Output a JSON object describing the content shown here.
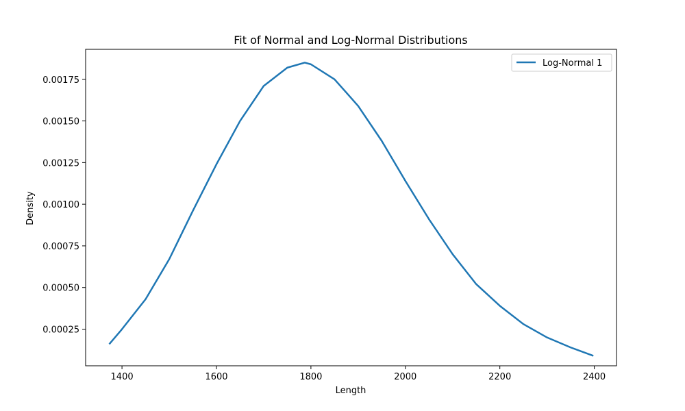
{
  "chart_data": {
    "type": "line",
    "title": "Fit of Normal and Log-Normal Distributions",
    "xlabel": "Length",
    "ylabel": "Density",
    "xlim": [
      1323,
      2447
    ],
    "ylim": [
      3e-05,
      0.00193
    ],
    "x_ticks": [
      1400,
      1600,
      1800,
      2000,
      2200,
      2400
    ],
    "x_tick_labels": [
      "1400",
      "1600",
      "1800",
      "2000",
      "2200",
      "2400"
    ],
    "y_ticks": [
      0.00025,
      0.0005,
      0.00075,
      0.001,
      0.00125,
      0.0015,
      0.00175
    ],
    "y_tick_labels": [
      "0.00025",
      "0.00050",
      "0.00075",
      "0.00100",
      "0.00125",
      "0.00150",
      "0.00175"
    ],
    "grid": false,
    "legend_position": "top-right",
    "series": [
      {
        "name": "Log-Normal 1",
        "color": "#1f77b4",
        "x": [
          1373,
          1400,
          1450,
          1500,
          1550,
          1600,
          1650,
          1700,
          1750,
          1787,
          1800,
          1850,
          1900,
          1950,
          2000,
          2050,
          2100,
          2150,
          2200,
          2250,
          2300,
          2350,
          2398
        ],
        "y": [
          0.00016,
          0.00025,
          0.00043,
          0.00067,
          0.00096,
          0.00124,
          0.0015,
          0.00171,
          0.00182,
          0.00185,
          0.00184,
          0.00175,
          0.00159,
          0.00138,
          0.00114,
          0.00091,
          0.0007,
          0.00052,
          0.00039,
          0.00028,
          0.0002,
          0.00014,
          9e-05
        ]
      }
    ]
  }
}
